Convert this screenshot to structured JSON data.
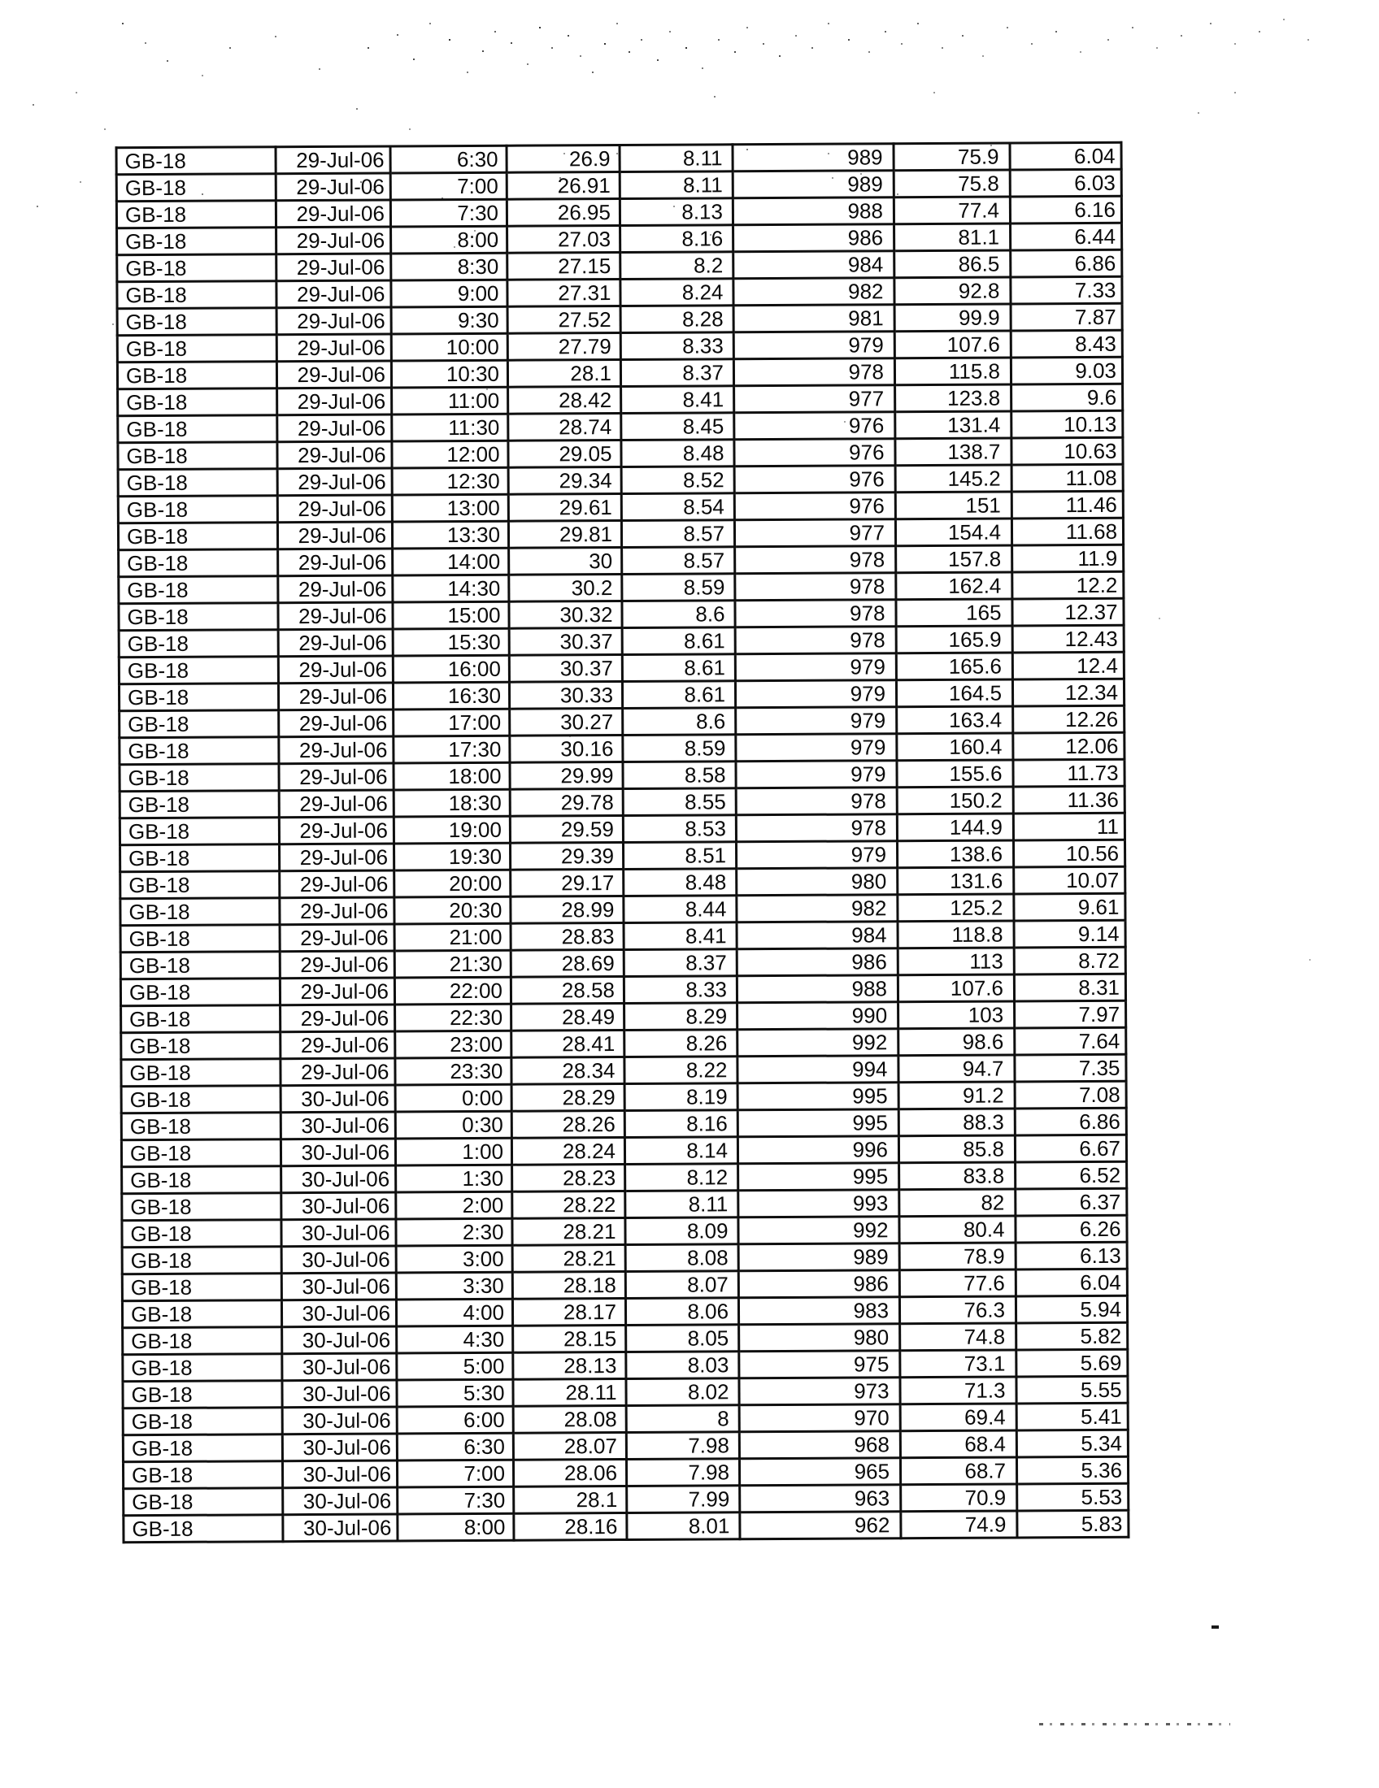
{
  "page": {
    "paper_color": "#ffffff",
    "ink_color": "#141414"
  },
  "table": {
    "station": "GB-18",
    "rows": [
      [
        "GB-18",
        "29-Jul-06",
        "6:30",
        "26.9",
        "8.11",
        "989",
        "75.9",
        "6.04"
      ],
      [
        "GB-18",
        "29-Jul-06",
        "7:00",
        "26.91",
        "8.11",
        "989",
        "75.8",
        "6.03"
      ],
      [
        "GB-18",
        "29-Jul-06",
        "7:30",
        "26.95",
        "8.13",
        "988",
        "77.4",
        "6.16"
      ],
      [
        "GB-18",
        "29-Jul-06",
        "8:00",
        "27.03",
        "8.16",
        "986",
        "81.1",
        "6.44"
      ],
      [
        "GB-18",
        "29-Jul-06",
        "8:30",
        "27.15",
        "8.2",
        "984",
        "86.5",
        "6.86"
      ],
      [
        "GB-18",
        "29-Jul-06",
        "9:00",
        "27.31",
        "8.24",
        "982",
        "92.8",
        "7.33"
      ],
      [
        "GB-18",
        "29-Jul-06",
        "9:30",
        "27.52",
        "8.28",
        "981",
        "99.9",
        "7.87"
      ],
      [
        "GB-18",
        "29-Jul-06",
        "10:00",
        "27.79",
        "8.33",
        "979",
        "107.6",
        "8.43"
      ],
      [
        "GB-18",
        "29-Jul-06",
        "10:30",
        "28.1",
        "8.37",
        "978",
        "115.8",
        "9.03"
      ],
      [
        "GB-18",
        "29-Jul-06",
        "11:00",
        "28.42",
        "8.41",
        "977",
        "123.8",
        "9.6"
      ],
      [
        "GB-18",
        "29-Jul-06",
        "11:30",
        "28.74",
        "8.45",
        "976",
        "131.4",
        "10.13"
      ],
      [
        "GB-18",
        "29-Jul-06",
        "12:00",
        "29.05",
        "8.48",
        "976",
        "138.7",
        "10.63"
      ],
      [
        "GB-18",
        "29-Jul-06",
        "12:30",
        "29.34",
        "8.52",
        "976",
        "145.2",
        "11.08"
      ],
      [
        "GB-18",
        "29-Jul-06",
        "13:00",
        "29.61",
        "8.54",
        "976",
        "151",
        "11.46"
      ],
      [
        "GB-18",
        "29-Jul-06",
        "13:30",
        "29.81",
        "8.57",
        "977",
        "154.4",
        "11.68"
      ],
      [
        "GB-18",
        "29-Jul-06",
        "14:00",
        "30",
        "8.57",
        "978",
        "157.8",
        "11.9"
      ],
      [
        "GB-18",
        "29-Jul-06",
        "14:30",
        "30.2",
        "8.59",
        "978",
        "162.4",
        "12.2"
      ],
      [
        "GB-18",
        "29-Jul-06",
        "15:00",
        "30.32",
        "8.6",
        "978",
        "165",
        "12.37"
      ],
      [
        "GB-18",
        "29-Jul-06",
        "15:30",
        "30.37",
        "8.61",
        "978",
        "165.9",
        "12.43"
      ],
      [
        "GB-18",
        "29-Jul-06",
        "16:00",
        "30.37",
        "8.61",
        "979",
        "165.6",
        "12.4"
      ],
      [
        "GB-18",
        "29-Jul-06",
        "16:30",
        "30.33",
        "8.61",
        "979",
        "164.5",
        "12.34"
      ],
      [
        "GB-18",
        "29-Jul-06",
        "17:00",
        "30.27",
        "8.6",
        "979",
        "163.4",
        "12.26"
      ],
      [
        "GB-18",
        "29-Jul-06",
        "17:30",
        "30.16",
        "8.59",
        "979",
        "160.4",
        "12.06"
      ],
      [
        "GB-18",
        "29-Jul-06",
        "18:00",
        "29.99",
        "8.58",
        "979",
        "155.6",
        "11.73"
      ],
      [
        "GB-18",
        "29-Jul-06",
        "18:30",
        "29.78",
        "8.55",
        "978",
        "150.2",
        "11.36"
      ],
      [
        "GB-18",
        "29-Jul-06",
        "19:00",
        "29.59",
        "8.53",
        "978",
        "144.9",
        "11"
      ],
      [
        "GB-18",
        "29-Jul-06",
        "19:30",
        "29.39",
        "8.51",
        "979",
        "138.6",
        "10.56"
      ],
      [
        "GB-18",
        "29-Jul-06",
        "20:00",
        "29.17",
        "8.48",
        "980",
        "131.6",
        "10.07"
      ],
      [
        "GB-18",
        "29-Jul-06",
        "20:30",
        "28.99",
        "8.44",
        "982",
        "125.2",
        "9.61"
      ],
      [
        "GB-18",
        "29-Jul-06",
        "21:00",
        "28.83",
        "8.41",
        "984",
        "118.8",
        "9.14"
      ],
      [
        "GB-18",
        "29-Jul-06",
        "21:30",
        "28.69",
        "8.37",
        "986",
        "113",
        "8.72"
      ],
      [
        "GB-18",
        "29-Jul-06",
        "22:00",
        "28.58",
        "8.33",
        "988",
        "107.6",
        "8.31"
      ],
      [
        "GB-18",
        "29-Jul-06",
        "22:30",
        "28.49",
        "8.29",
        "990",
        "103",
        "7.97"
      ],
      [
        "GB-18",
        "29-Jul-06",
        "23:00",
        "28.41",
        "8.26",
        "992",
        "98.6",
        "7.64"
      ],
      [
        "GB-18",
        "29-Jul-06",
        "23:30",
        "28.34",
        "8.22",
        "994",
        "94.7",
        "7.35"
      ],
      [
        "GB-18",
        "30-Jul-06",
        "0:00",
        "28.29",
        "8.19",
        "995",
        "91.2",
        "7.08"
      ],
      [
        "GB-18",
        "30-Jul-06",
        "0:30",
        "28.26",
        "8.16",
        "995",
        "88.3",
        "6.86"
      ],
      [
        "GB-18",
        "30-Jul-06",
        "1:00",
        "28.24",
        "8.14",
        "996",
        "85.8",
        "6.67"
      ],
      [
        "GB-18",
        "30-Jul-06",
        "1:30",
        "28.23",
        "8.12",
        "995",
        "83.8",
        "6.52"
      ],
      [
        "GB-18",
        "30-Jul-06",
        "2:00",
        "28.22",
        "8.11",
        "993",
        "82",
        "6.37"
      ],
      [
        "GB-18",
        "30-Jul-06",
        "2:30",
        "28.21",
        "8.09",
        "992",
        "80.4",
        "6.26"
      ],
      [
        "GB-18",
        "30-Jul-06",
        "3:00",
        "28.21",
        "8.08",
        "989",
        "78.9",
        "6.13"
      ],
      [
        "GB-18",
        "30-Jul-06",
        "3:30",
        "28.18",
        "8.07",
        "986",
        "77.6",
        "6.04"
      ],
      [
        "GB-18",
        "30-Jul-06",
        "4:00",
        "28.17",
        "8.06",
        "983",
        "76.3",
        "5.94"
      ],
      [
        "GB-18",
        "30-Jul-06",
        "4:30",
        "28.15",
        "8.05",
        "980",
        "74.8",
        "5.82"
      ],
      [
        "GB-18",
        "30-Jul-06",
        "5:00",
        "28.13",
        "8.03",
        "975",
        "73.1",
        "5.69"
      ],
      [
        "GB-18",
        "30-Jul-06",
        "5:30",
        "28.11",
        "8.02",
        "973",
        "71.3",
        "5.55"
      ],
      [
        "GB-18",
        "30-Jul-06",
        "6:00",
        "28.08",
        "8",
        "970",
        "69.4",
        "5.41"
      ],
      [
        "GB-18",
        "30-Jul-06",
        "6:30",
        "28.07",
        "7.98",
        "968",
        "68.4",
        "5.34"
      ],
      [
        "GB-18",
        "30-Jul-06",
        "7:00",
        "28.06",
        "7.98",
        "965",
        "68.7",
        "5.36"
      ],
      [
        "GB-18",
        "30-Jul-06",
        "7:30",
        "28.1",
        "7.99",
        "963",
        "70.9",
        "5.53"
      ],
      [
        "GB-18",
        "30-Jul-06",
        "8:00",
        "28.16",
        "8.01",
        "962",
        "74.9",
        "5.83"
      ]
    ]
  }
}
